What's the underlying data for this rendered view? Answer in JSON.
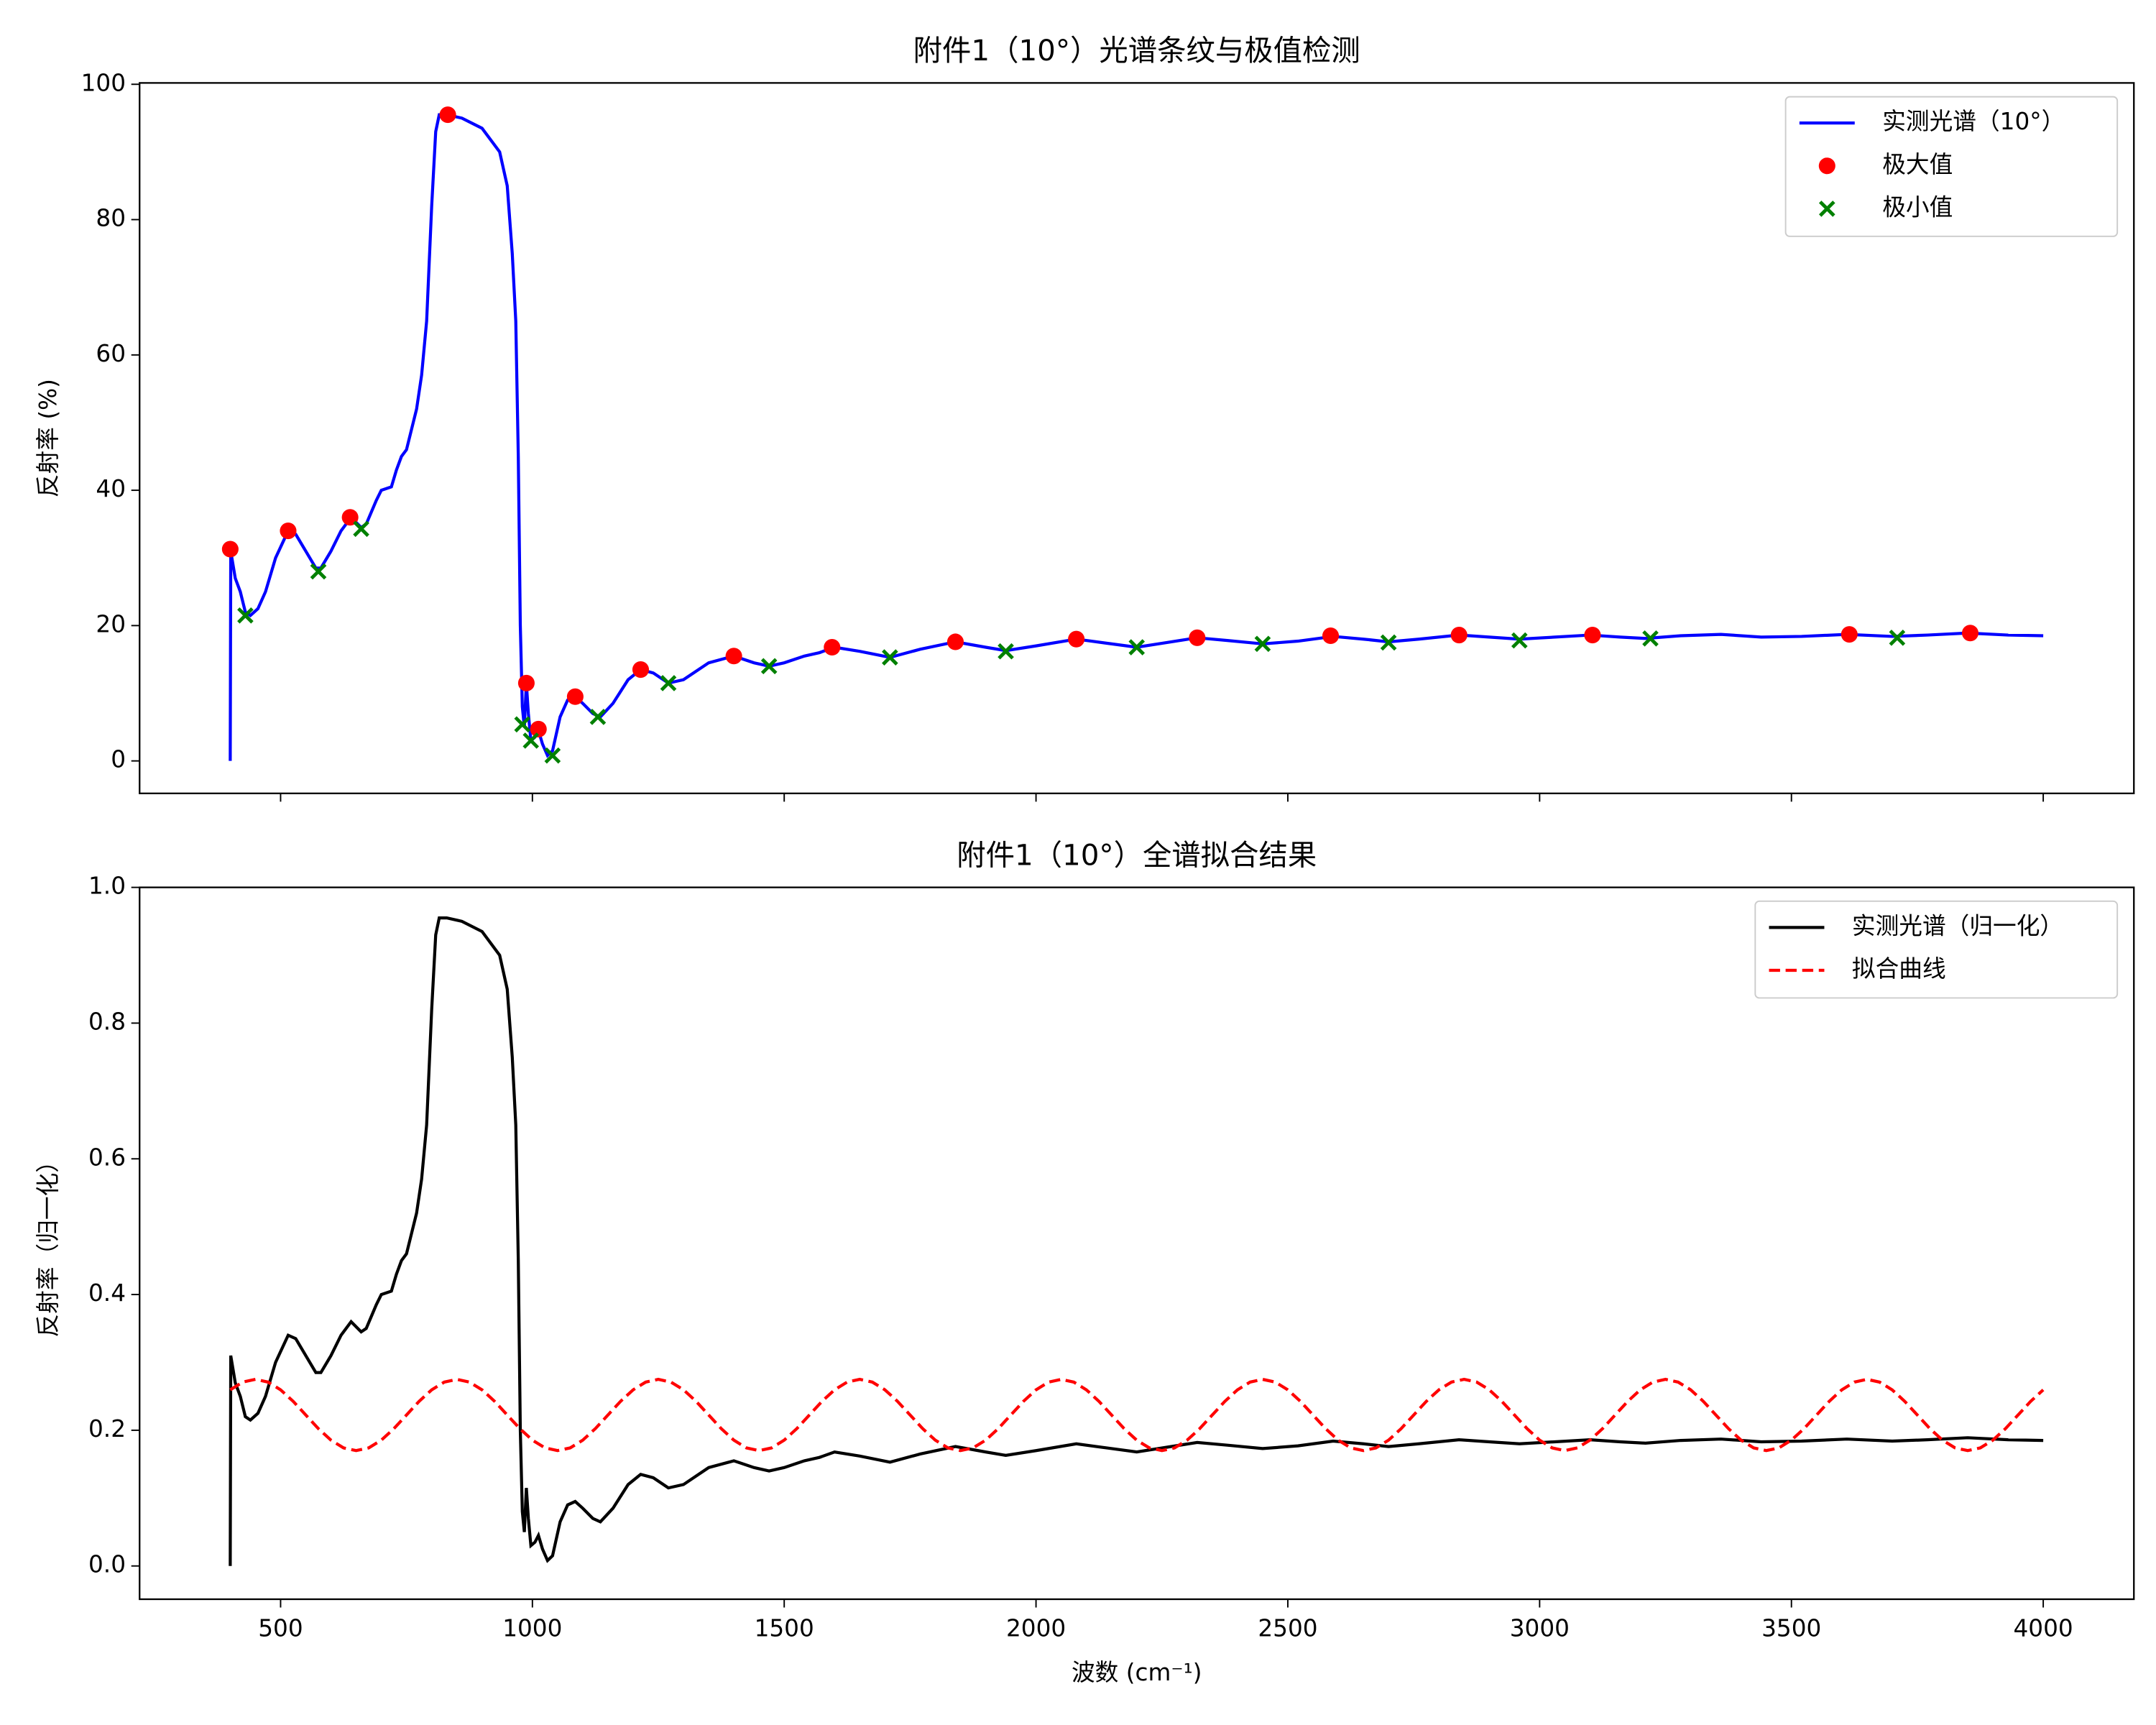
{
  "chart_data": [
    {
      "type": "line",
      "title": "附件1（10°）光谱条纹与极值检测",
      "ylabel": "反射率 (%)",
      "xlim": [
        220,
        4180
      ],
      "ylim": [
        -4.8,
        100.2
      ],
      "xticks": [
        500,
        1000,
        1500,
        2000,
        2500,
        3000,
        3500,
        4000
      ],
      "yticks": [
        0,
        20,
        40,
        60,
        80,
        100
      ],
      "legend": "upper right",
      "series": [
        {
          "name": "实测光谱（10°）",
          "color": "#0000ff",
          "type": "line",
          "linestyle": "-",
          "x": [
            400,
            401,
            410,
            420,
            430,
            440,
            455,
            470,
            490,
            515,
            530,
            550,
            570,
            580,
            600,
            620,
            640,
            660,
            670,
            690,
            700,
            720,
            730,
            740,
            750,
            760,
            770,
            780,
            790,
            800,
            808,
            815,
            830,
            860,
            900,
            920,
            935,
            950,
            960,
            967,
            972,
            976,
            980,
            984,
            988,
            992,
            997,
            1005,
            1012,
            1020,
            1030,
            1040,
            1055,
            1070,
            1085,
            1100,
            1120,
            1135,
            1160,
            1190,
            1215,
            1240,
            1270,
            1300,
            1350,
            1400,
            1440,
            1470,
            1500,
            1540,
            1570,
            1600,
            1650,
            1710,
            1770,
            1840,
            1900,
            1940,
            2000,
            2080,
            2140,
            2200,
            2260,
            2320,
            2380,
            2450,
            2520,
            2590,
            2650,
            2700,
            2760,
            2840,
            2900,
            2960,
            3030,
            3100,
            3160,
            3210,
            3280,
            3360,
            3440,
            3520,
            3610,
            3700,
            3770,
            3850,
            3930,
            4000
          ],
          "values": [
            0,
            31,
            27,
            25,
            22,
            21.5,
            22.5,
            25,
            30,
            34,
            33.5,
            31,
            28.5,
            28.5,
            31,
            34,
            36,
            34.5,
            35,
            38.5,
            40,
            40.5,
            43,
            45,
            46,
            49,
            52,
            57,
            65,
            82,
            93,
            95.5,
            95.5,
            95,
            93.5,
            91.5,
            90,
            85,
            75,
            65,
            45,
            20,
            8,
            5,
            11.5,
            7,
            3,
            3.5,
            4.5,
            2.5,
            0.8,
            1.5,
            6.5,
            9,
            9.5,
            8.5,
            7,
            6.5,
            8.5,
            12,
            13.5,
            13,
            11.5,
            12,
            14.5,
            15.5,
            14.5,
            14,
            14.5,
            15.5,
            16,
            16.8,
            16.2,
            15.3,
            16.5,
            17.6,
            16.8,
            16.3,
            17,
            18,
            17.4,
            16.8,
            17.5,
            18.2,
            17.8,
            17.3,
            17.7,
            18.4,
            18,
            17.6,
            18,
            18.6,
            18.3,
            18,
            18.3,
            18.6,
            18.3,
            18.1,
            18.5,
            18.7,
            18.3,
            18.4,
            18.7,
            18.4,
            18.6,
            18.9,
            18.6,
            18.5
          ]
        },
        {
          "name": "极大值",
          "color": "#ff0000",
          "type": "scatter",
          "marker": "o",
          "x": [
            400,
            515,
            638,
            832,
            988,
            1012,
            1085,
            1215,
            1400,
            1595,
            1840,
            2080,
            2320,
            2585,
            2840,
            3105,
            3615,
            3855
          ],
          "values": [
            31.3,
            34,
            36,
            95.5,
            11.5,
            4.7,
            9.5,
            13.5,
            15.5,
            16.8,
            17.6,
            18,
            18.2,
            18.5,
            18.6,
            18.6,
            18.7,
            18.9
          ]
        },
        {
          "name": "极小值",
          "color": "#008000",
          "type": "scatter",
          "marker": "x",
          "x": [
            430,
            575,
            660,
            980,
            997,
            1040,
            1130,
            1270,
            1470,
            1710,
            1940,
            2200,
            2450,
            2700,
            2960,
            3220,
            3710
          ],
          "values": [
            21.5,
            28,
            34.3,
            5.4,
            3,
            0.8,
            6.5,
            11.5,
            14,
            15.3,
            16.2,
            16.8,
            17.3,
            17.5,
            17.8,
            18.1,
            18.2
          ]
        }
      ]
    },
    {
      "type": "line",
      "title": "附件1（10°）全谱拟合结果",
      "xlabel": "波数 (cm⁻¹)",
      "ylabel": "反射率（归一化）",
      "xlim": [
        220,
        4180
      ],
      "ylim": [
        -0.049,
        1.0
      ],
      "xticks": [
        500,
        1000,
        1500,
        2000,
        2500,
        3000,
        3500,
        4000
      ],
      "yticks": [
        {
          "value": 0,
          "label": "0.0"
        },
        0.2,
        0.4,
        0.6,
        0.8,
        {
          "value": 1,
          "label": "1.0"
        }
      ],
      "legend": "upper right",
      "series": [
        {
          "name": "实测光谱（归一化）",
          "color": "#000000",
          "type": "line",
          "linestyle": "-",
          "x": [
            400,
            401,
            410,
            420,
            430,
            440,
            455,
            470,
            490,
            515,
            530,
            550,
            570,
            580,
            600,
            620,
            640,
            660,
            670,
            690,
            700,
            720,
            730,
            740,
            750,
            760,
            770,
            780,
            790,
            800,
            808,
            815,
            830,
            860,
            900,
            920,
            935,
            950,
            960,
            967,
            972,
            976,
            980,
            984,
            988,
            992,
            997,
            1005,
            1012,
            1020,
            1030,
            1040,
            1055,
            1070,
            1085,
            1100,
            1120,
            1135,
            1160,
            1190,
            1215,
            1240,
            1270,
            1300,
            1350,
            1400,
            1440,
            1470,
            1500,
            1540,
            1570,
            1600,
            1650,
            1710,
            1770,
            1840,
            1900,
            1940,
            2000,
            2080,
            2140,
            2200,
            2260,
            2320,
            2380,
            2450,
            2520,
            2590,
            2650,
            2700,
            2760,
            2840,
            2900,
            2960,
            3030,
            3100,
            3160,
            3210,
            3280,
            3360,
            3440,
            3520,
            3610,
            3700,
            3770,
            3850,
            3930,
            4000
          ],
          "values": [
            0,
            0.31,
            0.27,
            0.25,
            0.22,
            0.215,
            0.225,
            0.25,
            0.3,
            0.34,
            0.335,
            0.31,
            0.285,
            0.285,
            0.31,
            0.34,
            0.36,
            0.345,
            0.35,
            0.385,
            0.4,
            0.405,
            0.43,
            0.45,
            0.46,
            0.49,
            0.52,
            0.57,
            0.65,
            0.82,
            0.93,
            0.955,
            0.955,
            0.95,
            0.935,
            0.915,
            0.9,
            0.85,
            0.75,
            0.65,
            0.45,
            0.2,
            0.08,
            0.05,
            0.115,
            0.07,
            0.03,
            0.035,
            0.045,
            0.025,
            0.008,
            0.015,
            0.065,
            0.09,
            0.095,
            0.085,
            0.07,
            0.065,
            0.085,
            0.12,
            0.135,
            0.13,
            0.115,
            0.12,
            0.145,
            0.155,
            0.145,
            0.14,
            0.145,
            0.155,
            0.16,
            0.168,
            0.162,
            0.153,
            0.165,
            0.176,
            0.168,
            0.163,
            0.17,
            0.18,
            0.174,
            0.168,
            0.175,
            0.182,
            0.178,
            0.173,
            0.177,
            0.184,
            0.18,
            0.176,
            0.18,
            0.186,
            0.183,
            0.18,
            0.183,
            0.186,
            0.183,
            0.181,
            0.185,
            0.187,
            0.183,
            0.184,
            0.187,
            0.184,
            0.186,
            0.189,
            0.186,
            0.185
          ]
        },
        {
          "name": "拟合曲线",
          "color": "#ff0000",
          "type": "line",
          "linestyle": "--",
          "x": [
            400,
            425,
            450,
            475,
            500,
            525,
            550,
            575,
            600,
            625,
            650,
            675,
            700,
            725,
            750,
            775,
            800,
            825,
            850,
            875,
            900,
            925,
            950,
            975,
            1000,
            1025,
            1050,
            1075,
            1100,
            1125,
            1150,
            1175,
            1200,
            1225,
            1250,
            1275,
            1300,
            1325,
            1350,
            1375,
            1400,
            1425,
            1450,
            1475,
            1500,
            1525,
            1550,
            1575,
            1600,
            1625,
            1650,
            1675,
            1700,
            1725,
            1750,
            1775,
            1800,
            1825,
            1850,
            1875,
            1900,
            1925,
            1950,
            1975,
            2000,
            2025,
            2050,
            2075,
            2100,
            2125,
            2150,
            2175,
            2200,
            2225,
            2250,
            2275,
            2300,
            2325,
            2350,
            2375,
            2400,
            2425,
            2450,
            2475,
            2500,
            2525,
            2550,
            2575,
            2600,
            2625,
            2650,
            2675,
            2700,
            2725,
            2750,
            2775,
            2800,
            2825,
            2850,
            2875,
            2900,
            2925,
            2950,
            2975,
            3000,
            3025,
            3050,
            3075,
            3100,
            3125,
            3150,
            3175,
            3200,
            3225,
            3250,
            3275,
            3300,
            3325,
            3350,
            3375,
            3400,
            3425,
            3450,
            3475,
            3500,
            3525,
            3550,
            3575,
            3600,
            3625,
            3650,
            3675,
            3700,
            3725,
            3750,
            3775,
            3800,
            3825,
            3850,
            3875,
            3900,
            3925,
            3950,
            3975,
            4000
          ],
          "values": [
            0.2596,
            0.271,
            0.275,
            0.271,
            0.2596,
            0.2426,
            0.2225,
            0.2024,
            0.1854,
            0.174,
            0.17,
            0.174,
            0.1854,
            0.2024,
            0.2225,
            0.2426,
            0.2596,
            0.271,
            0.275,
            0.271,
            0.2596,
            0.2426,
            0.2225,
            0.2024,
            0.1854,
            0.174,
            0.17,
            0.174,
            0.1854,
            0.2024,
            0.2225,
            0.2426,
            0.2596,
            0.271,
            0.275,
            0.271,
            0.2596,
            0.2426,
            0.2225,
            0.2024,
            0.1854,
            0.174,
            0.17,
            0.174,
            0.1854,
            0.2024,
            0.2225,
            0.2426,
            0.2596,
            0.271,
            0.275,
            0.271,
            0.2596,
            0.2426,
            0.2225,
            0.2024,
            0.1854,
            0.174,
            0.17,
            0.174,
            0.1854,
            0.2024,
            0.2225,
            0.2426,
            0.2596,
            0.271,
            0.275,
            0.271,
            0.2596,
            0.2426,
            0.2225,
            0.2024,
            0.1854,
            0.174,
            0.17,
            0.174,
            0.1854,
            0.2024,
            0.2225,
            0.2426,
            0.2596,
            0.271,
            0.275,
            0.271,
            0.2596,
            0.2426,
            0.2225,
            0.2024,
            0.1854,
            0.174,
            0.17,
            0.174,
            0.1854,
            0.2024,
            0.2225,
            0.2426,
            0.2596,
            0.271,
            0.275,
            0.271,
            0.2596,
            0.2426,
            0.2225,
            0.2024,
            0.1854,
            0.174,
            0.17,
            0.174,
            0.1854,
            0.2024,
            0.2225,
            0.2426,
            0.2596,
            0.271,
            0.275,
            0.271,
            0.2596,
            0.2426,
            0.2225,
            0.2024,
            0.1854,
            0.174,
            0.17,
            0.174,
            0.1854,
            0.2024,
            0.2225,
            0.2426,
            0.2596,
            0.271,
            0.275,
            0.271,
            0.2596,
            0.2426,
            0.2225,
            0.2024,
            0.1854,
            0.174,
            0.17,
            0.174,
            0.1854,
            0.2024,
            0.2225,
            0.2426,
            0.2596
          ]
        }
      ]
    }
  ]
}
